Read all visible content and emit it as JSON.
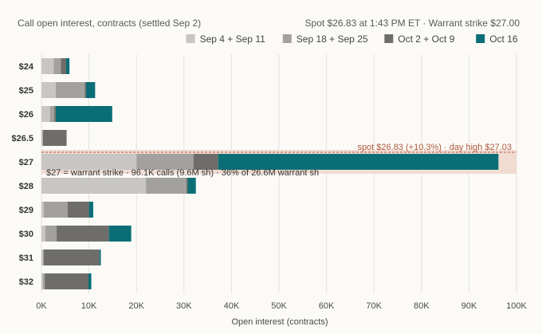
{
  "header": {
    "subtitle_left": "Call open interest, contracts (settled Sep 2)",
    "subtitle_right": "Spot $26.83 at 1:43 PM ET · Warrant strike $27.00"
  },
  "chart_data": {
    "type": "bar",
    "orientation": "horizontal",
    "stacked": true,
    "categories": [
      "$24",
      "$25",
      "$26",
      "$26.5",
      "$27",
      "$28",
      "$29",
      "$30",
      "$31",
      "$32"
    ],
    "series": [
      {
        "name": "Sep 4 + Sep 11",
        "color": "#c8c6c3",
        "values": [
          2600,
          3000,
          1800,
          200,
          20000,
          22000,
          500,
          800,
          300,
          300
        ]
      },
      {
        "name": "Sep 18 + Sep 25",
        "color": "#a3a19e",
        "values": [
          1500,
          6100,
          900,
          100,
          12000,
          8500,
          5000,
          2400,
          200,
          400
        ]
      },
      {
        "name": "Oct 2 + Oct 9",
        "color": "#6f6d69",
        "values": [
          1100,
          300,
          300,
          5000,
          5200,
          300,
          4500,
          11000,
          11700,
          9200
        ]
      },
      {
        "name": "Oct 16",
        "color": "#0b6e76",
        "values": [
          700,
          1900,
          11900,
          0,
          59000,
          1700,
          900,
          4700,
          300,
          600
        ]
      }
    ],
    "xlabel": "Open interest (contracts)",
    "ylabel": "",
    "xlim": [
      0,
      100000
    ],
    "xticks": [
      0,
      10000,
      20000,
      30000,
      40000,
      50000,
      60000,
      70000,
      80000,
      90000,
      100000
    ],
    "xtick_labels": [
      "0K",
      "10K",
      "20K",
      "30K",
      "40K",
      "50K",
      "60K",
      "70K",
      "80K",
      "90K",
      "100K"
    ],
    "grid": "vertical",
    "legend_position": "top-right",
    "highlight_category": "$27",
    "highlight_color": "#f1dcd2",
    "spot_line": {
      "value": 26.83,
      "color": "#b05a3c",
      "label": "spot $26.83 (+10.3%) · day high $27.03"
    },
    "annotation": "$27 = warrant strike · 96.1K calls (9.6M sh) · 36% of 26.6M warrant sh"
  }
}
